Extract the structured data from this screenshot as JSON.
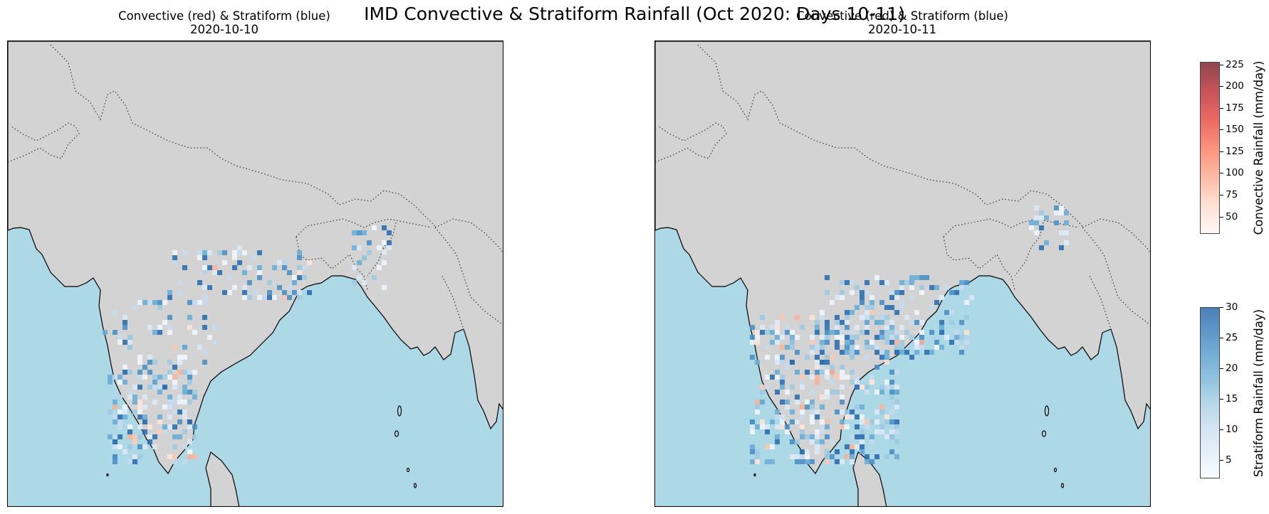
{
  "figure": {
    "title": "IMD Convective & Stratiform Rainfall (Oct 2020: Days 10-11)"
  },
  "panels": [
    {
      "title_line1": "Convective (red) & Stratiform (blue)",
      "title_line2": "2020-10-10"
    },
    {
      "title_line1": "Convective (red) & Stratiform (blue)",
      "title_line2": "2020-10-11"
    }
  ],
  "colorbars": {
    "convective": {
      "label": "Convective Rainfall (mm/day)",
      "range": [
        30,
        228
      ],
      "ticks": [
        "50",
        "75",
        "100",
        "125",
        "150",
        "175",
        "200",
        "225"
      ],
      "colormap": "Reds"
    },
    "stratiform": {
      "label": "Stratiform Rainfall (mm/day)",
      "range": [
        2,
        30
      ],
      "ticks": [
        "5",
        "10",
        "15",
        "20",
        "25",
        "30"
      ],
      "colormap": "Blues"
    }
  },
  "map_style": {
    "land_color": "#d3d3d3",
    "ocean_color": "#add8e6",
    "coastline_color": "#000000",
    "border_style": "dotted"
  }
}
